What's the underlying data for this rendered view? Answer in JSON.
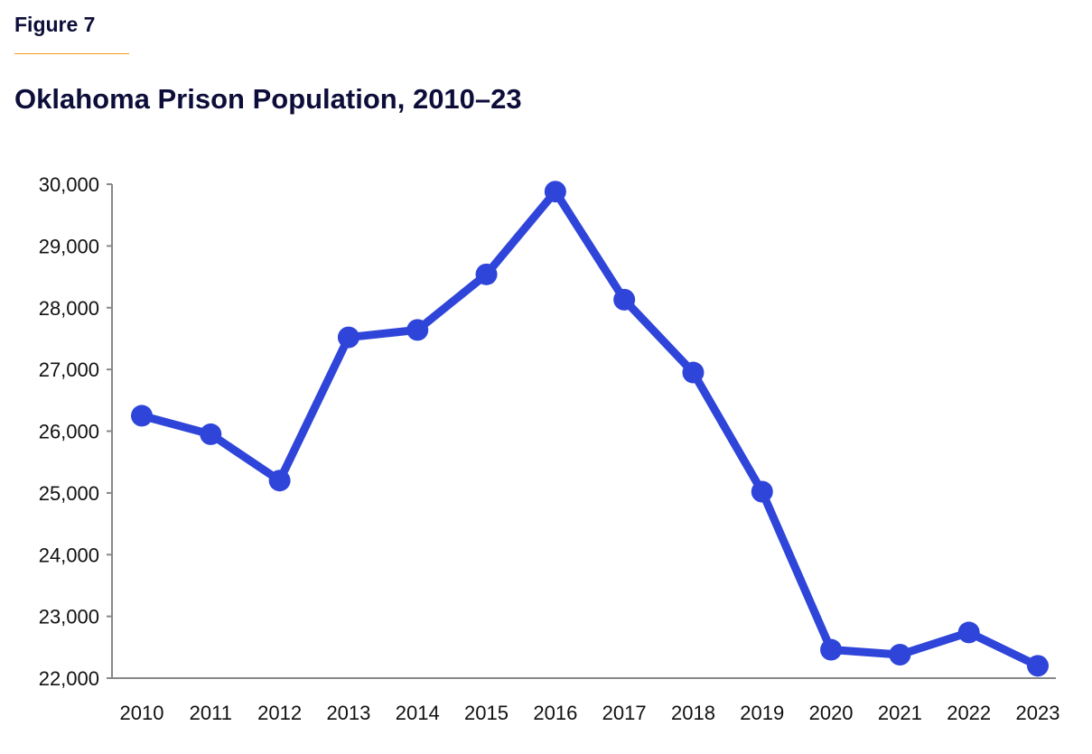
{
  "figure_label": "Figure 7",
  "chart_data": {
    "type": "line",
    "title": "Oklahoma Prison Population, 2010–23",
    "xlabel": "",
    "ylabel": "",
    "x": [
      2010,
      2011,
      2012,
      2013,
      2014,
      2015,
      2016,
      2017,
      2018,
      2019,
      2020,
      2021,
      2022,
      2023
    ],
    "x_tick_labels": [
      "2010",
      "2011",
      "2012",
      "2013",
      "2014",
      "2015",
      "2016",
      "2017",
      "2018",
      "2019",
      "2020",
      "2021",
      "2022",
      "2023"
    ],
    "series": [
      {
        "values": [
          26250,
          25950,
          25200,
          27520,
          27640,
          28540,
          29880,
          28130,
          26950,
          25020,
          22460,
          22380,
          22740,
          22200
        ],
        "color": "#2f45d9"
      }
    ],
    "ylim": [
      22000,
      30000
    ],
    "y_ticks": [
      22000,
      23000,
      24000,
      25000,
      26000,
      27000,
      28000,
      29000,
      30000
    ],
    "y_tick_labels": [
      "22,000",
      "23,000",
      "24,000",
      "25,000",
      "26,000",
      "27,000",
      "28,000",
      "29,000",
      "30,000"
    ],
    "grid": false,
    "markers": true
  }
}
